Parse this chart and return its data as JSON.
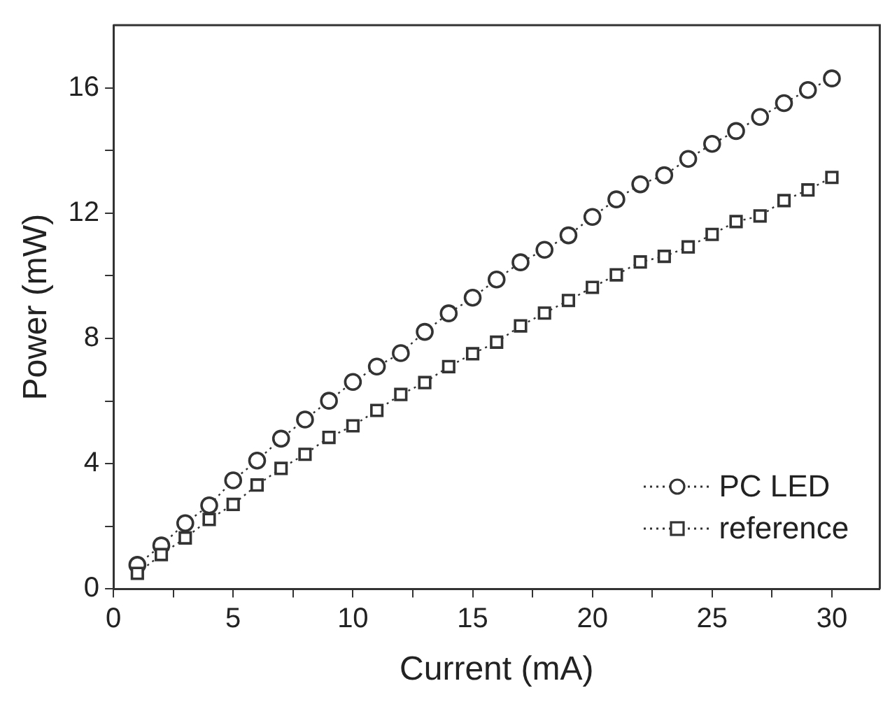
{
  "chart_data": {
    "type": "line",
    "xlabel": "Current (mA)",
    "ylabel": "Power (mW)",
    "x": [
      1,
      2,
      3,
      4,
      5,
      6,
      7,
      8,
      9,
      10,
      11,
      12,
      13,
      14,
      15,
      16,
      17,
      18,
      19,
      20,
      21,
      22,
      23,
      24,
      25,
      26,
      27,
      28,
      29,
      30
    ],
    "series": [
      {
        "name": "PC LED",
        "color": "#333333",
        "marker": "circle",
        "values": [
          0.77,
          1.39,
          2.1,
          2.67,
          3.47,
          4.1,
          4.8,
          5.41,
          6.01,
          6.61,
          7.1,
          7.53,
          8.21,
          8.8,
          9.3,
          9.88,
          10.43,
          10.83,
          11.29,
          11.88,
          12.44,
          12.92,
          13.21,
          13.73,
          14.21,
          14.62,
          15.07,
          15.51,
          15.93,
          16.3
        ]
      },
      {
        "name": "reference",
        "color": "#333333",
        "marker": "square",
        "values": [
          0.5,
          1.1,
          1.63,
          2.22,
          2.7,
          3.32,
          3.85,
          4.3,
          4.84,
          5.21,
          5.7,
          6.21,
          6.59,
          7.1,
          7.51,
          7.88,
          8.4,
          8.81,
          9.21,
          9.63,
          10.03,
          10.44,
          10.62,
          10.92,
          11.32,
          11.73,
          11.91,
          12.4,
          12.74,
          13.14
        ]
      }
    ],
    "xlim": [
      0,
      32
    ],
    "xticks": [
      0,
      {
        "value": 2.5,
        "label": null
      },
      5,
      {
        "value": 7.5,
        "label": null
      },
      10,
      {
        "value": 12.5,
        "label": null
      },
      15,
      {
        "value": 17.5,
        "label": null
      },
      20,
      {
        "value": 22.5,
        "label": null
      },
      25,
      {
        "value": 27.5,
        "label": null
      },
      30
    ],
    "ylim": [
      0,
      18
    ],
    "yticks": [
      0,
      {
        "value": 2,
        "label": null
      },
      4,
      {
        "value": 6,
        "label": null
      },
      8,
      {
        "value": 10,
        "label": null
      },
      12,
      {
        "value": 14,
        "label": null
      },
      16
    ],
    "line_style": "dotted",
    "grid": false,
    "legend": "bottom right"
  }
}
